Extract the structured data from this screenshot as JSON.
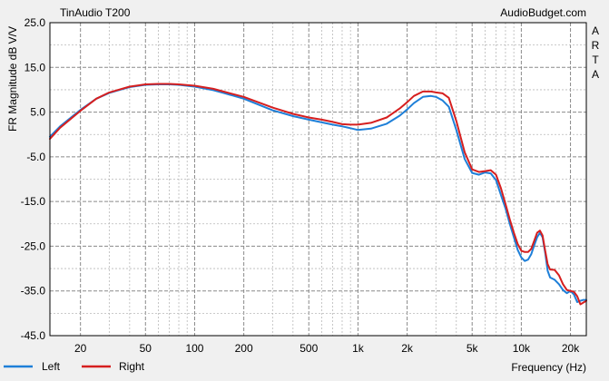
{
  "chart_data": {
    "type": "line",
    "title": "TinAudio T200",
    "source_label": "AudioBudget.com",
    "side_label": "ARTA",
    "xlabel": "Frequency (Hz)",
    "ylabel": "FR Magnitude dB V/V",
    "x_scale": "log",
    "xlim": [
      13,
      25000
    ],
    "ylim": [
      -45,
      25
    ],
    "grid": true,
    "legend_position": "bottom-left",
    "x_tick_labels": [
      "20",
      "50",
      "100",
      "200",
      "500",
      "1k",
      "2k",
      "5k",
      "10k",
      "20k"
    ],
    "x_tick_values": [
      20,
      50,
      100,
      200,
      500,
      1000,
      2000,
      5000,
      10000,
      20000
    ],
    "y_tick_labels": [
      "25.0",
      "15.0",
      "5.0",
      "-5.0",
      "-15.0",
      "-25.0",
      "-35.0",
      "-45.0"
    ],
    "y_tick_values": [
      25,
      15,
      5,
      -5,
      -15,
      -25,
      -35,
      -45
    ],
    "series": [
      {
        "name": "Left",
        "color": "#1e7fd8",
        "x": [
          13,
          15,
          20,
          25,
          30,
          40,
          50,
          60,
          70,
          80,
          100,
          130,
          150,
          200,
          300,
          400,
          500,
          600,
          700,
          800,
          900,
          1000,
          1200,
          1500,
          1800,
          2000,
          2200,
          2500,
          2800,
          3000,
          3300,
          3600,
          4000,
          4500,
          5000,
          5500,
          6000,
          6500,
          7000,
          7500,
          8000,
          8500,
          9000,
          9500,
          10000,
          10500,
          11000,
          11500,
          12000,
          12500,
          13000,
          13500,
          14000,
          14500,
          15000,
          16000,
          17000,
          18000,
          19000,
          20000,
          21000,
          22000,
          23000,
          24000,
          25000
        ],
        "y": [
          -0.5,
          1.8,
          5.5,
          8.0,
          9.3,
          10.6,
          11.1,
          11.2,
          11.2,
          11.1,
          10.7,
          9.9,
          9.3,
          8.0,
          5.4,
          4.1,
          3.3,
          2.7,
          2.2,
          1.8,
          1.4,
          1.0,
          1.3,
          2.4,
          4.2,
          5.6,
          7.0,
          8.4,
          8.6,
          8.4,
          7.6,
          6.2,
          1.0,
          -5.5,
          -8.6,
          -9.0,
          -8.5,
          -8.7,
          -10.2,
          -13.5,
          -16.5,
          -20.0,
          -23.0,
          -25.8,
          -27.5,
          -28.3,
          -28.0,
          -26.8,
          -24.8,
          -23.0,
          -22.0,
          -23.0,
          -26.5,
          -30.5,
          -32.0,
          -32.5,
          -33.5,
          -34.8,
          -35.5,
          -35.0,
          -35.8,
          -37.5,
          -37.2,
          -37.0,
          -37.0
        ]
      },
      {
        "name": "Right",
        "color": "#d61f1f",
        "x": [
          13,
          15,
          20,
          25,
          30,
          40,
          50,
          60,
          70,
          80,
          100,
          130,
          150,
          200,
          300,
          400,
          500,
          600,
          700,
          800,
          900,
          1000,
          1200,
          1500,
          1800,
          2000,
          2200,
          2500,
          2800,
          3000,
          3300,
          3600,
          4000,
          4500,
          5000,
          5500,
          6000,
          6500,
          7000,
          7500,
          8000,
          8500,
          9000,
          9500,
          10000,
          10500,
          11000,
          11500,
          12000,
          12500,
          13000,
          13500,
          14000,
          14500,
          15000,
          16000,
          17000,
          18000,
          19000,
          20000,
          21000,
          22000,
          23000,
          24000,
          25000
        ],
        "y": [
          -1.0,
          1.5,
          5.3,
          8.0,
          9.4,
          10.7,
          11.2,
          11.3,
          11.3,
          11.2,
          10.9,
          10.2,
          9.6,
          8.4,
          6.0,
          4.6,
          3.8,
          3.3,
          2.8,
          2.3,
          2.2,
          2.2,
          2.6,
          3.8,
          5.8,
          7.2,
          8.6,
          9.6,
          9.6,
          9.4,
          9.2,
          8.2,
          3.0,
          -4.0,
          -7.8,
          -8.4,
          -8.2,
          -8.0,
          -9.0,
          -12.0,
          -15.5,
          -19.0,
          -22.0,
          -24.5,
          -26.0,
          -26.3,
          -26.3,
          -25.6,
          -23.8,
          -22.0,
          -21.5,
          -22.6,
          -26.0,
          -29.0,
          -30.2,
          -30.3,
          -31.5,
          -33.5,
          -34.8,
          -35.0,
          -35.2,
          -36.2,
          -38.0,
          -37.6,
          -37.2
        ]
      }
    ]
  }
}
